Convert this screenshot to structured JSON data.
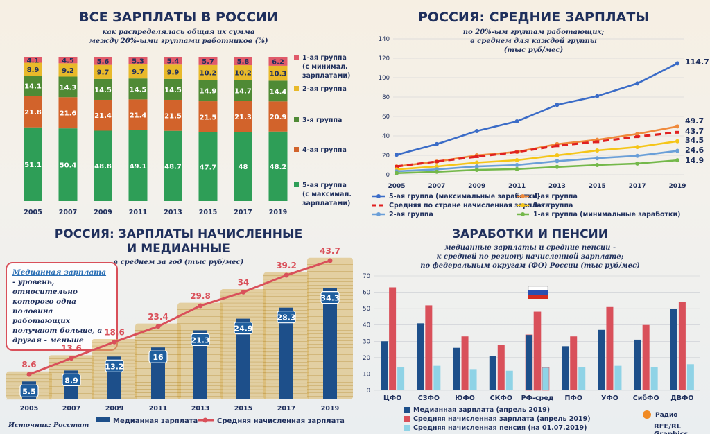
{
  "panel1": {
    "title": "ВСЕ ЗАРПЛАТЫ В РОССИИ",
    "subtitle1": "как распределялась общая их сумма",
    "subtitle2": "между 20%-ыми группами работников (%)"
  },
  "panel2": {
    "title": "РОССИЯ: СРЕДНИЕ ЗАРПЛАТЫ",
    "subtitle1": "по 20%-ым группам работающих;",
    "subtitle2": "в среднем для каждой группы",
    "subtitle3": "(тыс руб/мес)"
  },
  "panel3": {
    "title1": "РОССИЯ: ЗАРПЛАТЫ НАЧИСЛЕННЫЕ",
    "title2": "И МЕДИАННЫЕ",
    "subtitle": "в среднем за год (тыс руб/мес)",
    "note_term": "Медианная зарплата",
    "note_text": " - уровень, относительно которого одна половина работающих получают больше, а другая - меньше",
    "source": "Источник: Росстат"
  },
  "panel4": {
    "title": "ЗАРАБОТКИ И ПЕНСИИ",
    "subtitle1": "медианные зарплаты и средние пенсии -",
    "subtitle2": "к средней по региону начисленной зарплате;",
    "subtitle3": "по федеральным округам (ФО) России (тыс руб/мес)"
  },
  "credits": {
    "radio": "Радио",
    "rfe": "RFE/RL Graphics"
  },
  "colors": {
    "g1": "#e05a6a",
    "g2": "#e8b92a",
    "g3": "#4f8a35",
    "g4": "#d2632b",
    "g5": "#2e9e57",
    "top": "#3b6cc7",
    "g4line": "#ef8a3c",
    "avg": "#e02020",
    "g3line": "#f5c518",
    "g2line": "#6a9fd8",
    "g1line": "#74b84a",
    "median": "#1d4f8a",
    "accrued": "#d9505a",
    "pension": "#8fd3e6"
  },
  "chart_data": [
    {
      "type": "bar",
      "stacked": true,
      "categories": [
        "2005",
        "2007",
        "2009",
        "2011",
        "2013",
        "2015",
        "2017",
        "2019"
      ],
      "ylim": [
        0,
        100
      ],
      "series": [
        {
          "name": "5-ая группа (с максимал. зарплатами)",
          "values": [
            51.1,
            50.4,
            48.8,
            49.1,
            48.7,
            47.7,
            48,
            48.2
          ]
        },
        {
          "name": "4-ая группа",
          "values": [
            21.8,
            21.6,
            21.4,
            21.4,
            21.5,
            21.5,
            21.3,
            20.9
          ]
        },
        {
          "name": "3-я группа",
          "values": [
            14.1,
            14.3,
            14.5,
            14.5,
            14.5,
            14.9,
            14.7,
            14.4
          ]
        },
        {
          "name": "2-ая группа",
          "values": [
            8.9,
            9.2,
            9.7,
            9.7,
            9.9,
            10.2,
            10.2,
            10.3
          ]
        },
        {
          "name": "1-ая группа (с минимал. зарплатами)",
          "values": [
            4.1,
            4.5,
            5.6,
            5.3,
            5.4,
            5.7,
            5.8,
            6.2
          ]
        }
      ]
    },
    {
      "type": "line",
      "x": [
        "2005",
        "2007",
        "2009",
        "2011",
        "2013",
        "2015",
        "2017",
        "2019"
      ],
      "ylim": [
        0,
        140
      ],
      "yticks": [
        0,
        20,
        40,
        60,
        80,
        100,
        120,
        140
      ],
      "series": [
        {
          "name": "5-ая группа (максимальные заработки)",
          "values": [
            20.5,
            31.5,
            45,
            55,
            72,
            81,
            94,
            114.7
          ],
          "end_label": "114.7"
        },
        {
          "name": "4-ая группа",
          "values": [
            8.5,
            13.5,
            20,
            23.5,
            31.5,
            36,
            42,
            49.7
          ],
          "end_label": "49.7"
        },
        {
          "name": "Средняя по стране начисленная зарплата",
          "values": [
            8.6,
            13.6,
            18.6,
            23.4,
            29.8,
            34,
            39.2,
            43.7
          ],
          "end_label": "43.7"
        },
        {
          "name": "3-я группа",
          "values": [
            5.5,
            8.5,
            12.5,
            15,
            20,
            25,
            28.5,
            34.5
          ],
          "end_label": "34.5"
        },
        {
          "name": "2-ая группа",
          "values": [
            3.5,
            5.5,
            8.5,
            10,
            14,
            17,
            19.5,
            24.6
          ],
          "end_label": "24.6"
        },
        {
          "name": "1-ая группа (минимальные заработки)",
          "values": [
            1.6,
            3,
            5,
            5.8,
            8,
            10,
            11.5,
            14.9
          ],
          "end_label": "14.9"
        }
      ]
    },
    {
      "type": "bar",
      "categories": [
        "2005",
        "2007",
        "2009",
        "2011",
        "2013",
        "2015",
        "2017",
        "2019"
      ],
      "series": [
        {
          "name": "Медианная зарплата",
          "values": [
            5.5,
            8.9,
            13.2,
            16,
            21.3,
            24.9,
            28.3,
            34.3
          ]
        },
        {
          "name": "Средняя начисленная зарплата",
          "type": "line",
          "values": [
            8.6,
            13.6,
            18.6,
            23.4,
            29.8,
            34,
            39.2,
            43.7
          ]
        }
      ]
    },
    {
      "type": "bar",
      "categories": [
        "ЦФО",
        "СЗФО",
        "ЮФО",
        "СКФО",
        "РФ-сред",
        "ПФО",
        "УФО",
        "СибФО",
        "ДВФО"
      ],
      "ylim": [
        0,
        70
      ],
      "yticks": [
        0,
        10,
        20,
        30,
        40,
        50,
        60,
        70
      ],
      "series": [
        {
          "name": "Медианная зарплата (апрель 2019)",
          "values": [
            30,
            41,
            26,
            21,
            34,
            27,
            37,
            31,
            50
          ]
        },
        {
          "name": "Средняя начисленная зарплата (апрель 2019)",
          "values": [
            63,
            52,
            33,
            28,
            48,
            33,
            51,
            40,
            54
          ]
        },
        {
          "name": "Средняя начисленная пенсия (на 01.07.2019)",
          "values": [
            14,
            15,
            13,
            12,
            14,
            14,
            15,
            14,
            16
          ]
        }
      ]
    }
  ]
}
